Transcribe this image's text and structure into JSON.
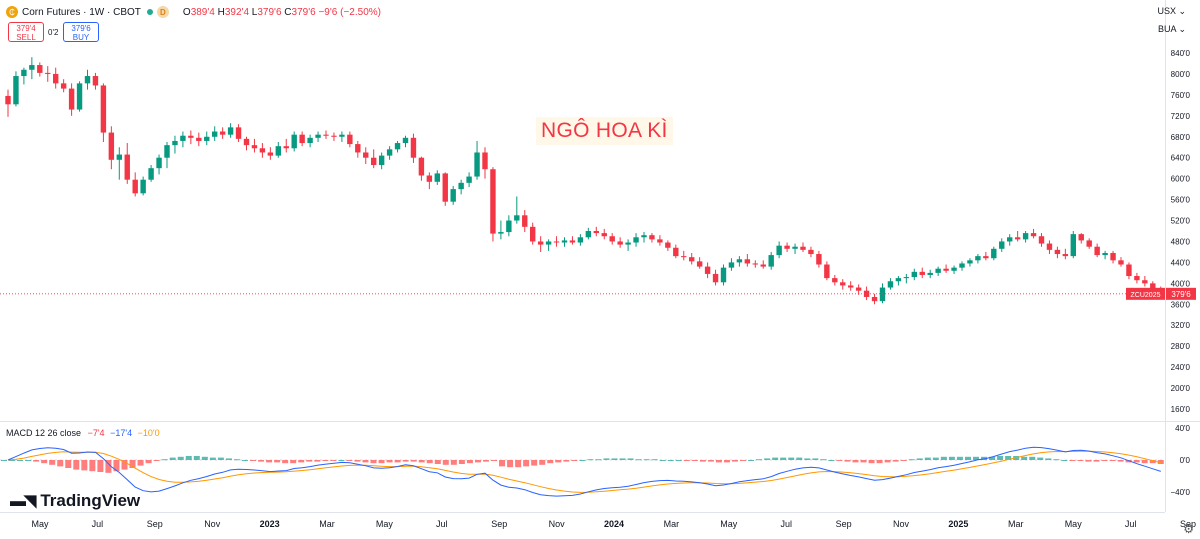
{
  "header": {
    "symbol_title": "Corn Futures · 1W · CBOT",
    "delay_badge": "D",
    "ohlc": {
      "o_label": "O",
      "o": "389'4",
      "h_label": "H",
      "h": "392'4",
      "l_label": "L",
      "l": "379'6",
      "c_label": "C",
      "c": "379'6",
      "change": "−9'6 (−2.50%)"
    }
  },
  "trade": {
    "sell_price": "379'4",
    "sell_label": "SELL",
    "spread": "0'2",
    "buy_price": "379'6",
    "buy_label": "BUY"
  },
  "top_right": {
    "currency": "USX ⌄",
    "unit": "BUA ⌄"
  },
  "annotation": "NGÔ HOA KÌ",
  "brand": "TradingView",
  "colors": {
    "up": "#089981",
    "down": "#f23645",
    "macd": "#2962ff",
    "signal": "#ff9800",
    "hist_up": "#26a69a",
    "hist_down": "#ff5252"
  },
  "chart_data": [
    {
      "type": "candlestick",
      "title": "Corn Futures · 1W · CBOT",
      "series_name": "ZCU2025",
      "price_axis_labels": [
        "840'0",
        "800'0",
        "760'0",
        "720'0",
        "680'0",
        "640'0",
        "600'0",
        "560'0",
        "520'0",
        "480'0",
        "440'0",
        "400'0",
        "360'0",
        "320'0",
        "280'0",
        "240'0",
        "200'0",
        "160'0"
      ],
      "time_axis_labels": [
        "May",
        "Jul",
        "Sep",
        "Nov",
        "2023",
        "Mar",
        "May",
        "Jul",
        "Sep",
        "Nov",
        "2024",
        "Mar",
        "May",
        "Jul",
        "Sep",
        "Nov",
        "2025",
        "Mar",
        "May",
        "Jul",
        "Sep"
      ],
      "last_price_label": "379'6",
      "ylim": [
        140,
        860
      ],
      "grid": false,
      "candles_ohlc": [
        [
          758,
          770,
          718,
          742
        ],
        [
          742,
          805,
          738,
          796
        ],
        [
          796,
          812,
          780,
          808
        ],
        [
          808,
          832,
          790,
          817
        ],
        [
          817,
          822,
          795,
          802
        ],
        [
          802,
          815,
          785,
          800
        ],
        [
          800,
          812,
          772,
          782
        ],
        [
          782,
          790,
          765,
          772
        ],
        [
          772,
          782,
          720,
          732
        ],
        [
          732,
          786,
          728,
          782
        ],
        [
          782,
          808,
          770,
          796
        ],
        [
          796,
          802,
          770,
          778
        ],
        [
          778,
          782,
          670,
          688
        ],
        [
          688,
          700,
          618,
          636
        ],
        [
          636,
          660,
          598,
          646
        ],
        [
          646,
          668,
          590,
          598
        ],
        [
          598,
          612,
          566,
          572
        ],
        [
          572,
          604,
          568,
          598
        ],
        [
          598,
          626,
          594,
          620
        ],
        [
          620,
          646,
          608,
          640
        ],
        [
          640,
          670,
          620,
          664
        ],
        [
          664,
          682,
          648,
          672
        ],
        [
          672,
          690,
          660,
          682
        ],
        [
          682,
          692,
          666,
          678
        ],
        [
          678,
          688,
          662,
          672
        ],
        [
          672,
          690,
          664,
          680
        ],
        [
          680,
          700,
          672,
          690
        ],
        [
          690,
          698,
          676,
          684
        ],
        [
          684,
          706,
          678,
          698
        ],
        [
          698,
          704,
          670,
          676
        ],
        [
          676,
          680,
          654,
          664
        ],
        [
          664,
          676,
          650,
          658
        ],
        [
          658,
          668,
          640,
          650
        ],
        [
          650,
          660,
          636,
          644
        ],
        [
          644,
          670,
          640,
          662
        ],
        [
          662,
          676,
          650,
          658
        ],
        [
          658,
          690,
          652,
          684
        ],
        [
          684,
          690,
          662,
          668
        ],
        [
          668,
          684,
          660,
          678
        ],
        [
          678,
          690,
          670,
          684
        ],
        [
          684,
          692,
          676,
          682
        ],
        [
          682,
          688,
          672,
          680
        ],
        [
          680,
          690,
          670,
          684
        ],
        [
          684,
          690,
          660,
          666
        ],
        [
          666,
          672,
          640,
          650
        ],
        [
          650,
          660,
          628,
          640
        ],
        [
          640,
          656,
          620,
          626
        ],
        [
          626,
          650,
          618,
          644
        ],
        [
          644,
          662,
          636,
          656
        ],
        [
          656,
          672,
          650,
          668
        ],
        [
          668,
          682,
          660,
          678
        ],
        [
          678,
          686,
          630,
          640
        ],
        [
          640,
          642,
          596,
          606
        ],
        [
          606,
          612,
          580,
          594
        ],
        [
          594,
          616,
          588,
          610
        ],
        [
          610,
          612,
          548,
          556
        ],
        [
          556,
          586,
          550,
          580
        ],
        [
          580,
          598,
          570,
          592
        ],
        [
          592,
          612,
          584,
          604
        ],
        [
          604,
          672,
          598,
          650
        ],
        [
          650,
          660,
          600,
          618
        ],
        [
          618,
          622,
          480,
          495
        ],
        [
          495,
          520,
          484,
          498
        ],
        [
          498,
          530,
          490,
          520
        ],
        [
          520,
          566,
          514,
          530
        ],
        [
          530,
          540,
          498,
          508
        ],
        [
          508,
          516,
          474,
          480
        ],
        [
          480,
          490,
          460,
          474
        ],
        [
          474,
          484,
          462,
          480
        ],
        [
          480,
          490,
          470,
          478
        ],
        [
          478,
          488,
          470,
          482
        ],
        [
          482,
          490,
          474,
          478
        ],
        [
          478,
          494,
          472,
          488
        ],
        [
          488,
          506,
          484,
          500
        ],
        [
          500,
          508,
          490,
          496
        ],
        [
          496,
          504,
          484,
          490
        ],
        [
          490,
          496,
          474,
          480
        ],
        [
          480,
          488,
          468,
          474
        ],
        [
          474,
          484,
          462,
          478
        ],
        [
          478,
          496,
          470,
          488
        ],
        [
          488,
          498,
          478,
          492
        ],
        [
          492,
          496,
          478,
          484
        ],
        [
          484,
          492,
          472,
          478
        ],
        [
          478,
          482,
          462,
          468
        ],
        [
          468,
          474,
          448,
          452
        ],
        [
          452,
          462,
          444,
          450
        ],
        [
          450,
          458,
          436,
          442
        ],
        [
          442,
          450,
          428,
          432
        ],
        [
          432,
          440,
          410,
          418
        ],
        [
          418,
          426,
          396,
          402
        ],
        [
          402,
          436,
          396,
          430
        ],
        [
          430,
          448,
          424,
          440
        ],
        [
          440,
          452,
          432,
          446
        ],
        [
          446,
          456,
          432,
          438
        ],
        [
          438,
          444,
          430,
          436
        ],
        [
          436,
          444,
          428,
          432
        ],
        [
          432,
          460,
          426,
          454
        ],
        [
          454,
          480,
          448,
          472
        ],
        [
          472,
          478,
          460,
          466
        ],
        [
          466,
          476,
          456,
          470
        ],
        [
          470,
          478,
          460,
          464
        ],
        [
          464,
          470,
          450,
          456
        ],
        [
          456,
          462,
          430,
          436
        ],
        [
          436,
          442,
          406,
          410
        ],
        [
          410,
          416,
          396,
          402
        ],
        [
          402,
          408,
          388,
          396
        ],
        [
          396,
          404,
          386,
          392
        ],
        [
          392,
          398,
          378,
          386
        ],
        [
          386,
          394,
          368,
          374
        ],
        [
          374,
          380,
          360,
          366
        ],
        [
          366,
          400,
          362,
          392
        ],
        [
          392,
          410,
          388,
          404
        ],
        [
          404,
          414,
          396,
          410
        ],
        [
          410,
          418,
          400,
          412
        ],
        [
          412,
          428,
          406,
          422
        ],
        [
          422,
          430,
          410,
          416
        ],
        [
          416,
          426,
          410,
          420
        ],
        [
          420,
          432,
          414,
          428
        ],
        [
          428,
          436,
          420,
          424
        ],
        [
          424,
          434,
          418,
          430
        ],
        [
          430,
          442,
          424,
          438
        ],
        [
          438,
          448,
          432,
          444
        ],
        [
          444,
          456,
          438,
          452
        ],
        [
          452,
          460,
          444,
          448
        ],
        [
          448,
          470,
          444,
          466
        ],
        [
          466,
          486,
          460,
          480
        ],
        [
          480,
          494,
          472,
          488
        ],
        [
          488,
          500,
          480,
          484
        ],
        [
          484,
          500,
          478,
          496
        ],
        [
          496,
          504,
          486,
          490
        ],
        [
          490,
          496,
          470,
          476
        ],
        [
          476,
          482,
          456,
          464
        ],
        [
          464,
          470,
          448,
          456
        ],
        [
          456,
          466,
          446,
          452
        ],
        [
          452,
          500,
          448,
          494
        ],
        [
          494,
          496,
          476,
          482
        ],
        [
          482,
          486,
          466,
          470
        ],
        [
          470,
          476,
          450,
          454
        ],
        [
          454,
          462,
          446,
          458
        ],
        [
          458,
          462,
          438,
          444
        ],
        [
          444,
          450,
          432,
          436
        ],
        [
          436,
          440,
          408,
          414
        ],
        [
          414,
          420,
          400,
          406
        ],
        [
          406,
          414,
          394,
          400
        ],
        [
          400,
          404,
          386,
          390
        ],
        [
          390,
          394,
          378,
          380
        ]
      ]
    },
    {
      "type": "macd",
      "title": "MACD 12 26 close",
      "legend_values": [
        "−7'4",
        "−17'4",
        "−10'0"
      ],
      "axis_labels": [
        "40'0",
        "0'0",
        "−40'0"
      ],
      "ylim": [
        -50,
        50
      ],
      "histogram": [
        0,
        0,
        0,
        0,
        -2,
        -4,
        -6,
        -8,
        -10,
        -12,
        -13,
        -14,
        -15,
        -16,
        -14,
        -12,
        -10,
        -7,
        -4,
        -1,
        1,
        3,
        4,
        5,
        5,
        4,
        3,
        3,
        2,
        1,
        0,
        -1,
        -2,
        -3,
        -3,
        -4,
        -4,
        -3,
        -2,
        -2,
        -1,
        -1,
        0,
        -1,
        -2,
        -3,
        -4,
        -4,
        -3,
        -3,
        -2,
        -2,
        -3,
        -4,
        -5,
        -6,
        -6,
        -5,
        -4,
        -3,
        -2,
        -1,
        -8,
        -9,
        -9,
        -8,
        -7,
        -6,
        -4,
        -3,
        -2,
        -1,
        0,
        1,
        1,
        2,
        2,
        2,
        2,
        1,
        1,
        1,
        0,
        0,
        0,
        -1,
        -1,
        -2,
        -2,
        -3,
        -3,
        -2,
        -1,
        0,
        1,
        2,
        3,
        3,
        3,
        3,
        2,
        2,
        1,
        0,
        -1,
        -2,
        -3,
        -3,
        -4,
        -4,
        -3,
        -2,
        -1,
        1,
        2,
        3,
        3,
        4,
        4,
        4,
        4,
        4,
        4,
        4,
        5,
        5,
        5,
        4,
        4,
        3,
        2,
        1,
        0,
        -1,
        -1,
        -2,
        -2,
        -1,
        -1,
        -2,
        -3,
        -3,
        -4,
        -4,
        -5
      ]
    }
  ]
}
